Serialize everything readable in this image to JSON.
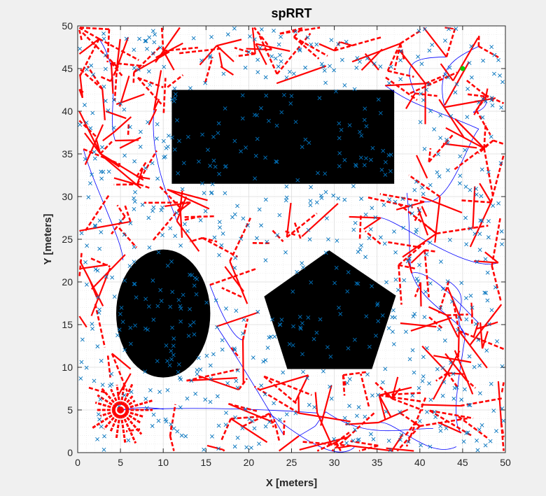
{
  "chart_data": {
    "type": "scatter",
    "title": "spRRT",
    "xlabel": "X [meters]",
    "ylabel": "Y [meters]",
    "xlim": [
      0,
      50
    ],
    "ylim": [
      0,
      50
    ],
    "xticks": [
      0,
      5,
      10,
      15,
      20,
      25,
      30,
      35,
      40,
      45,
      50
    ],
    "yticks": [
      0,
      5,
      10,
      15,
      20,
      25,
      30,
      35,
      40,
      45,
      50
    ],
    "grid": "minor",
    "background_color": "#f0f0f0",
    "plot_background_color": "#ffffff",
    "start": [
      5,
      5
    ],
    "goal": [
      45,
      45
    ],
    "obstacles": [
      {
        "shape": "rectangle",
        "x": [
          11,
          37
        ],
        "y": [
          31.5,
          42.5
        ],
        "color": "#000000"
      },
      {
        "shape": "ellipse",
        "center": [
          10,
          16.3
        ],
        "radii": [
          5.5,
          7.5
        ],
        "color": "#000000"
      },
      {
        "shape": "polygon",
        "points": [
          [
            29.4,
            23.7
          ],
          [
            37.2,
            18.4
          ],
          [
            34.4,
            9.8
          ],
          [
            24.5,
            9.8
          ],
          [
            21.8,
            18.3
          ]
        ],
        "color": "#000000"
      }
    ],
    "series_colors": {
      "samples": "#0072bd",
      "tree_edges": "#ff0000",
      "smooth_paths": "#0000ff",
      "start": "#ff0000",
      "goal": "#00cc00"
    }
  }
}
